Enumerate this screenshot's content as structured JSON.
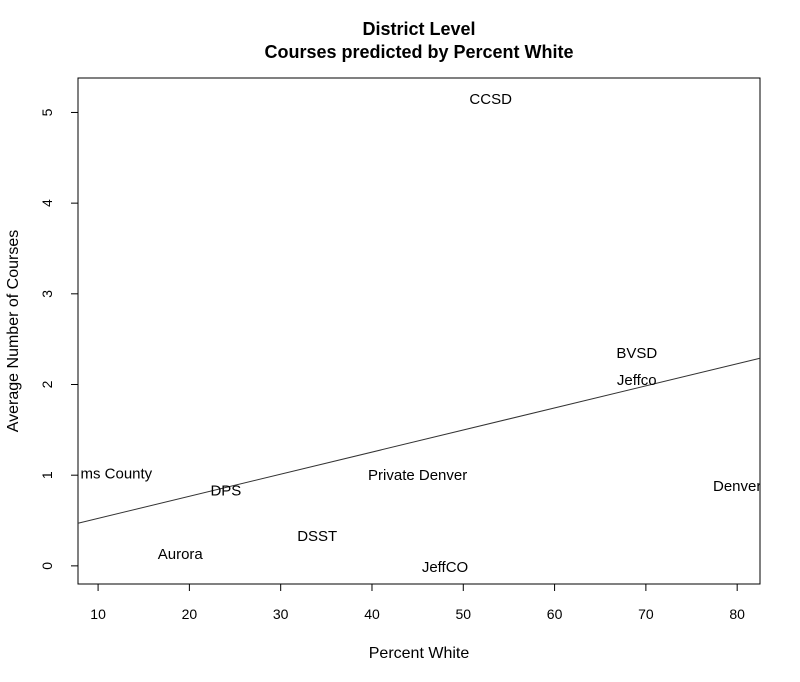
{
  "chart_data": {
    "type": "scatter",
    "title": "District Level",
    "subtitle": "Courses predicted by Percent White",
    "xlabel": "Percent White",
    "ylabel": "Average Number of Courses",
    "xlim": [
      7.8,
      82.5
    ],
    "ylim": [
      -0.2,
      5.38
    ],
    "x_ticks": [
      10,
      20,
      30,
      40,
      50,
      60,
      70,
      80
    ],
    "y_ticks": [
      0,
      1,
      2,
      3,
      4,
      5
    ],
    "points": [
      {
        "label": "CCSD",
        "x": 53,
        "y": 5.15
      },
      {
        "label": "BVSD",
        "x": 69,
        "y": 2.35
      },
      {
        "label": "Jeffco",
        "x": 69,
        "y": 2.05
      },
      {
        "label": "ms County",
        "x": 12,
        "y": 1.02
      },
      {
        "label": "Private Denver",
        "x": 45,
        "y": 1.0
      },
      {
        "label": "Denver",
        "x": 80,
        "y": 0.88
      },
      {
        "label": "DPS",
        "x": 24,
        "y": 0.83
      },
      {
        "label": "DSST",
        "x": 34,
        "y": 0.33
      },
      {
        "label": "Aurora",
        "x": 19,
        "y": 0.13
      },
      {
        "label": "JeffCO",
        "x": 48,
        "y": -0.01
      }
    ],
    "regression_line": {
      "x": [
        7.8,
        82.5
      ],
      "y": [
        0.47,
        2.29
      ]
    },
    "grid": false,
    "legend": "none"
  }
}
